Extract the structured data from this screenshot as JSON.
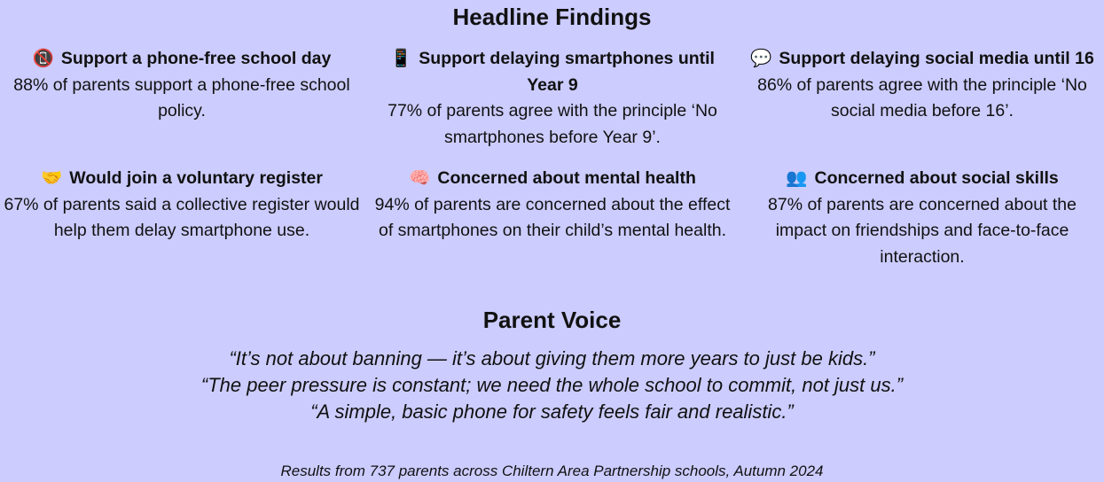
{
  "headline_title": "Headline Findings",
  "findings": [
    {
      "icon": "no-mobile-phones-icon",
      "glyph": "📵",
      "title": "Support a phone-free school day",
      "text": "88% of parents support a phone-free school policy."
    },
    {
      "icon": "mobile-phone-icon",
      "glyph": "📱",
      "title": "Support delaying smartphones until Year 9",
      "text": "77% of parents agree with the principle ‘No smartphones before Year 9’."
    },
    {
      "icon": "speech-bubble-icon",
      "glyph": "💬",
      "title": "Support delaying social media until 16",
      "text": "86% of parents agree with the principle ‘No social media before 16’."
    },
    {
      "icon": "handshake-icon",
      "glyph": "🤝",
      "title": "Would join a voluntary register",
      "text": "67% of parents said a collective register would help them delay smartphone use."
    },
    {
      "icon": "brain-icon",
      "glyph": "🧠",
      "title": "Concerned about mental health",
      "text": "94% of parents are concerned about the effect of smartphones on their child’s mental health."
    },
    {
      "icon": "people-icon",
      "glyph": "👥",
      "title": "Concerned about social skills",
      "text": "87% of parents are concerned about the impact on friendships and face-to-face interaction."
    }
  ],
  "voice_title": "Parent Voice",
  "quotes": [
    "“It’s not about banning — it’s about giving them more years to just be kids.”",
    "“The peer pressure is constant; we need the whole school to commit, not just us.”",
    "“A simple, basic phone for safety feels fair and realistic.”"
  ],
  "footnote": "Results from 737 parents across Chiltern Area Partnership schools, Autumn 2024"
}
